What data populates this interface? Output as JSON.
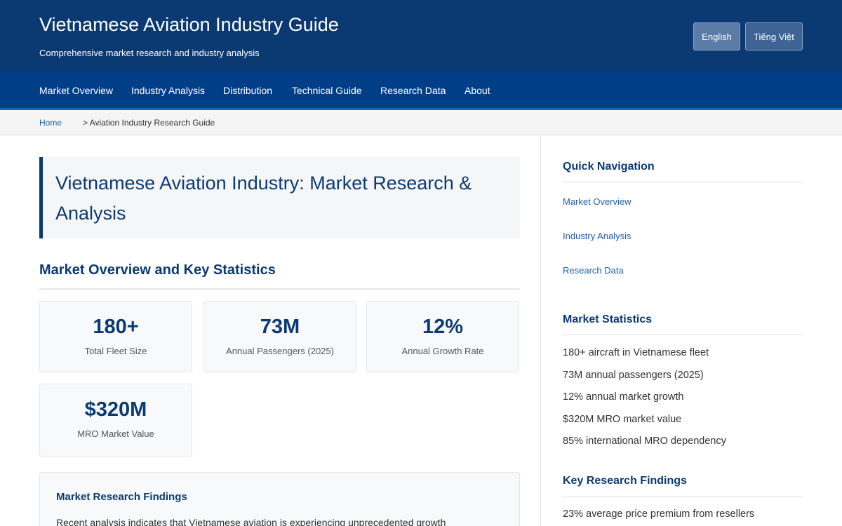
{
  "header": {
    "title": "Vietnamese Aviation Industry Guide",
    "subtitle": "Comprehensive market research and industry analysis",
    "languages": [
      "English",
      "Tiếng Việt"
    ]
  },
  "nav": {
    "items": [
      "Market Overview",
      "Industry Analysis",
      "Distribution",
      "Technical Guide",
      "Research Data",
      "About"
    ]
  },
  "breadcrumb": {
    "home": "Home",
    "current": "> Aviation Industry Research Guide"
  },
  "main": {
    "hero_title": "Vietnamese Aviation Industry: Market Research & Analysis",
    "section_title": "Market Overview and Key Statistics",
    "stats": [
      {
        "value": "180+",
        "label": "Total Fleet Size"
      },
      {
        "value": "73M",
        "label": "Annual Passengers (2025)"
      },
      {
        "value": "12%",
        "label": "Annual Growth Rate"
      },
      {
        "value": "$320M",
        "label": "MRO Market Value"
      }
    ],
    "findings": {
      "title": "Market Research Findings",
      "text": "Recent analysis indicates that Vietnamese aviation is experiencing unprecedented growth"
    }
  },
  "sidebar": {
    "quick_nav": {
      "title": "Quick Navigation",
      "links": [
        "Market Overview",
        "Industry Analysis",
        "Research Data"
      ]
    },
    "market_stats": {
      "title": "Market Statistics",
      "items": [
        "180+ aircraft in Vietnamese fleet",
        "73M annual passengers (2025)",
        "12% annual market growth",
        "$320M MRO market value",
        "85% international MRO dependency"
      ]
    },
    "key_findings": {
      "title": "Key Research Findings",
      "items": [
        "23% average price premium from resellers"
      ]
    }
  }
}
